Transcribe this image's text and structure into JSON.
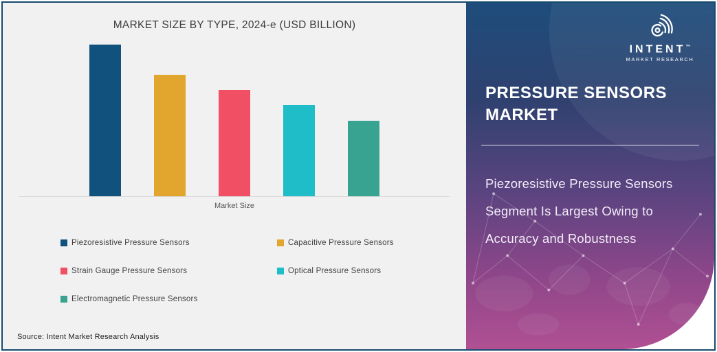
{
  "chart_data": {
    "type": "bar",
    "title": "MARKET SIZE BY TYPE, 2024-e (USD BILLION)",
    "categories": [
      "Piezoresistive Pressure Sensors",
      "Capacitive Pressure Sensors",
      "Strain Gauge Pressure Sensors",
      "Optical Pressure Sensors",
      "Electromagnetic Pressure Sensors"
    ],
    "values": [
      100,
      80,
      70,
      60,
      50
    ],
    "values_are_relative_estimates": true,
    "colors": [
      "#11517e",
      "#e2a52d",
      "#f04f64",
      "#1fbdc8",
      "#39a392"
    ],
    "xlabel": "Market Size",
    "ylabel": "",
    "ylim": [
      0,
      105
    ],
    "y_axis_visible": false,
    "grid": false,
    "legend_position": "bottom"
  },
  "footer": {
    "source": "Source: Intent Market Research Analysis"
  },
  "panel": {
    "logo": {
      "brand": "INTENT",
      "trademark": "™",
      "tagline": "MARKET RESEARCH"
    },
    "title": "PRESSURE SENSORS MARKET",
    "description": "Piezoresistive Pressure Sensors Segment Is Largest Owing to Accuracy and Robustness",
    "gradient_top": "#1e4d7b",
    "gradient_bottom": "#b05093",
    "text_color": "#ffffff"
  }
}
